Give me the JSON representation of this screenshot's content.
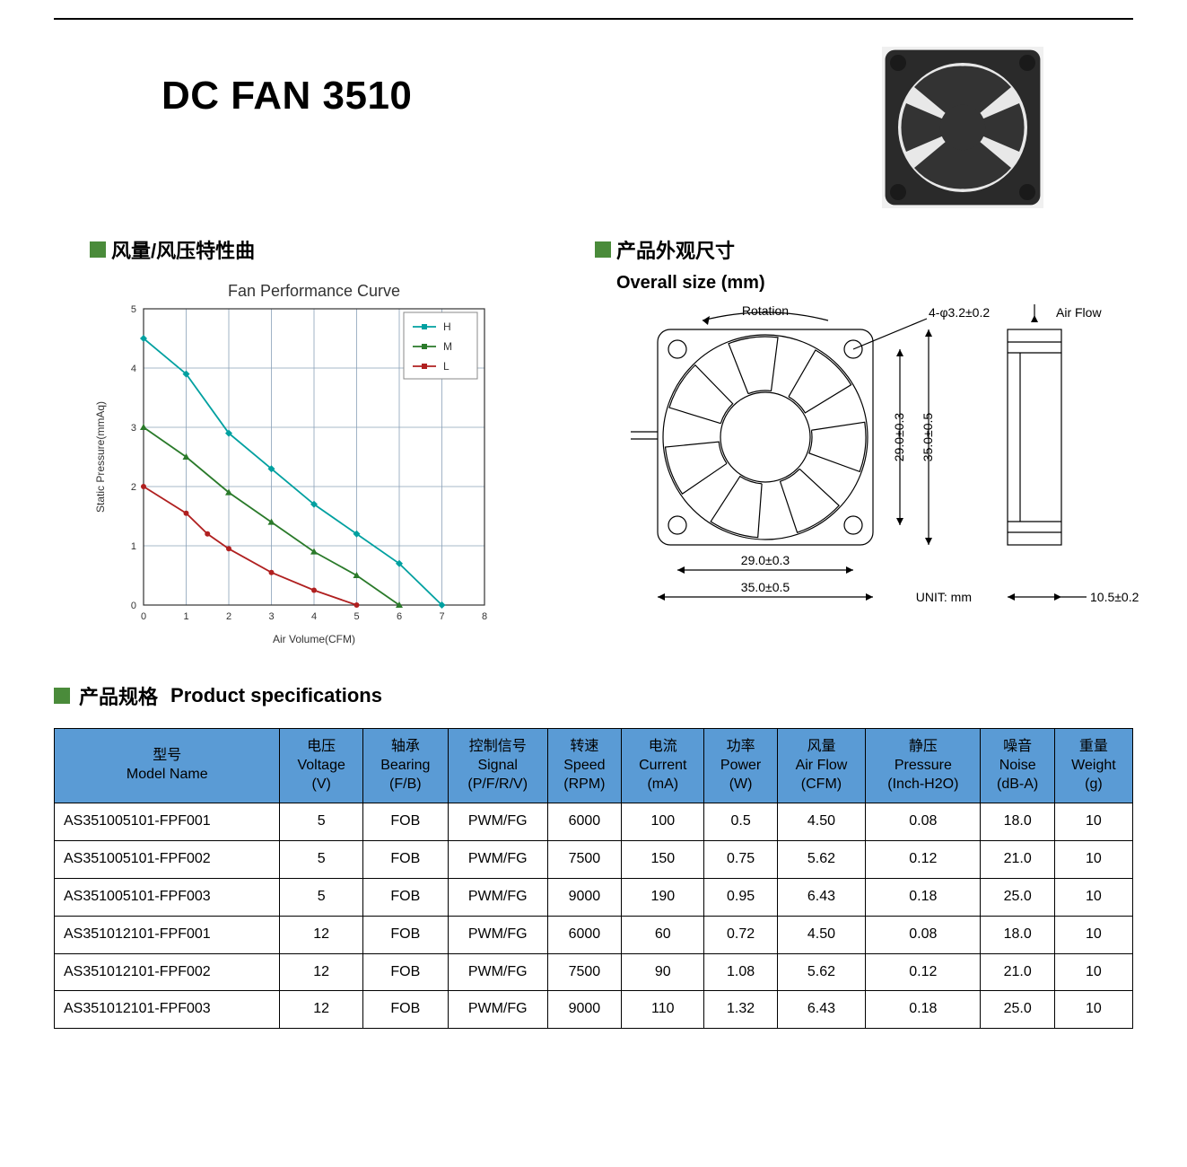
{
  "title": "DC FAN 3510",
  "section_curve_cn": "风量/风压特性曲",
  "section_size_cn": "产品外观尺寸",
  "section_size_en": "Overall size (mm)",
  "section_spec_cn": "产品规格",
  "section_spec_en": "Product specifications",
  "chart": {
    "title": "Fan Performance Curve",
    "xlabel": "Air Volume(CFM)",
    "ylabel": "Static Pressure(mmAq)",
    "xlim": [
      0,
      8
    ],
    "ylim": [
      0,
      5
    ],
    "xticks": [
      0,
      1,
      2,
      3,
      4,
      5,
      6,
      7,
      8
    ],
    "yticks": [
      0,
      1,
      2,
      3,
      4,
      5
    ],
    "grid_color": "#8aa0b8",
    "bg_color": "#ffffff",
    "title_fontsize": 18,
    "label_fontsize": 12,
    "tick_fontsize": 11,
    "legend_items": [
      "H",
      "M",
      "L"
    ],
    "legend_colors": [
      "#00a0a0",
      "#2a7a2a",
      "#b02020"
    ],
    "series": {
      "H": {
        "color": "#00a0a0",
        "marker": "diamond",
        "pts": [
          [
            0,
            4.5
          ],
          [
            1,
            3.9
          ],
          [
            2,
            2.9
          ],
          [
            3,
            2.3
          ],
          [
            4,
            1.7
          ],
          [
            5,
            1.2
          ],
          [
            6,
            0.7
          ],
          [
            7,
            0
          ]
        ]
      },
      "M": {
        "color": "#2a7a2a",
        "marker": "triangle",
        "pts": [
          [
            0,
            3.0
          ],
          [
            1,
            2.5
          ],
          [
            2,
            1.9
          ],
          [
            3,
            1.4
          ],
          [
            4,
            0.9
          ],
          [
            5,
            0.5
          ],
          [
            6,
            0
          ]
        ]
      },
      "L": {
        "color": "#b02020",
        "marker": "circle",
        "pts": [
          [
            0,
            2.0
          ],
          [
            1,
            1.55
          ],
          [
            1.5,
            1.2
          ],
          [
            2,
            0.95
          ],
          [
            3,
            0.55
          ],
          [
            4,
            0.25
          ],
          [
            5,
            0
          ]
        ]
      }
    }
  },
  "drawing": {
    "rotation_label": "Rotation",
    "airflow_label": "Air Flow",
    "hole_label": "4-φ3.2±0.2",
    "dim_29a": "29.0±0.3",
    "dim_29b": "29.0±0.3",
    "dim_35a": "35.0±0.5",
    "dim_35b": "35.0±0.5",
    "dim_depth": "10.5±0.2",
    "unit_label": "UNIT: mm",
    "line_color": "#000000"
  },
  "table": {
    "header_bg": "#5a9bd5",
    "border_color": "#000000",
    "columns": [
      {
        "cn": "型号",
        "en": "Model Name",
        "unit": ""
      },
      {
        "cn": "电压",
        "en": "Voltage",
        "unit": "(V)"
      },
      {
        "cn": "轴承",
        "en": "Bearing",
        "unit": "(F/B)"
      },
      {
        "cn": "控制信号",
        "en": "Signal",
        "unit": "(P/F/R/V)"
      },
      {
        "cn": "转速",
        "en": "Speed",
        "unit": "(RPM)"
      },
      {
        "cn": "电流",
        "en": "Current",
        "unit": "(mA)"
      },
      {
        "cn": "功率",
        "en": "Power",
        "unit": "(W)"
      },
      {
        "cn": "风量",
        "en": "Air Flow",
        "unit": "(CFM)"
      },
      {
        "cn": "静压",
        "en": "Pressure",
        "unit": "(Inch-H2O)"
      },
      {
        "cn": "噪音",
        "en": "Noise",
        "unit": "(dB-A)"
      },
      {
        "cn": "重量",
        "en": "Weight",
        "unit": "(g)"
      }
    ],
    "rows": [
      [
        "AS351005101-FPF001",
        "5",
        "FOB",
        "PWM/FG",
        "6000",
        "100",
        "0.5",
        "4.50",
        "0.08",
        "18.0",
        "10"
      ],
      [
        "AS351005101-FPF002",
        "5",
        "FOB",
        "PWM/FG",
        "7500",
        "150",
        "0.75",
        "5.62",
        "0.12",
        "21.0",
        "10"
      ],
      [
        "AS351005101-FPF003",
        "5",
        "FOB",
        "PWM/FG",
        "9000",
        "190",
        "0.95",
        "6.43",
        "0.18",
        "25.0",
        "10"
      ],
      [
        "AS351012101-FPF001",
        "12",
        "FOB",
        "PWM/FG",
        "6000",
        "60",
        "0.72",
        "4.50",
        "0.08",
        "18.0",
        "10"
      ],
      [
        "AS351012101-FPF002",
        "12",
        "FOB",
        "PWM/FG",
        "7500",
        "90",
        "1.08",
        "5.62",
        "0.12",
        "21.0",
        "10"
      ],
      [
        "AS351012101-FPF003",
        "12",
        "FOB",
        "PWM/FG",
        "9000",
        "110",
        "1.32",
        "6.43",
        "0.18",
        "25.0",
        "10"
      ]
    ]
  }
}
